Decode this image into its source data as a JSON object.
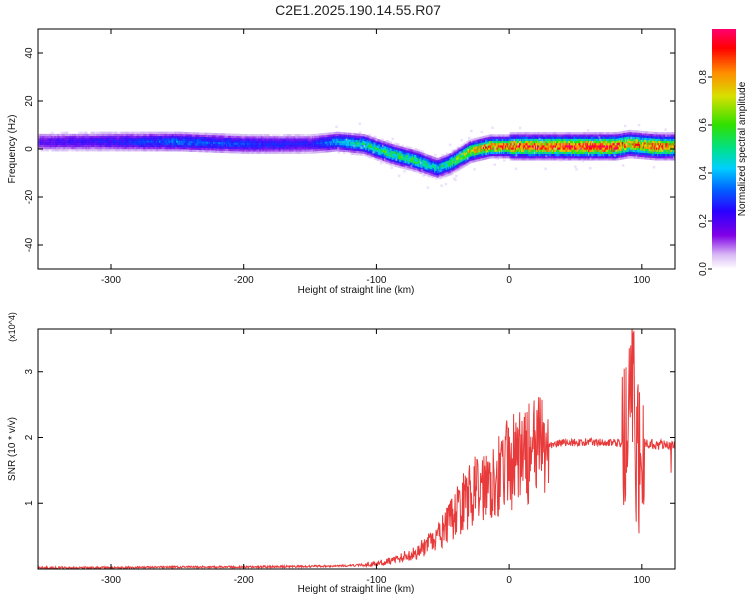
{
  "title": "C2E1.2025.190.14.55.R07",
  "chart_data": [
    {
      "type": "heatmap",
      "xlabel": "Height of straight line (km)",
      "ylabel": "Frequency (Hz)",
      "xlim": [
        -355,
        125
      ],
      "ylim": [
        -50,
        50
      ],
      "x_ticks": [
        "-300",
        "-200",
        "-100",
        "0",
        "100"
      ],
      "y_ticks": [
        "-40",
        "-20",
        "0",
        "20",
        "40"
      ],
      "colorbar": {
        "label": "Normalized spectral amplitude",
        "range": [
          0,
          1
        ],
        "ticks": [
          "0.0",
          "0.2",
          "0.4",
          "0.6",
          "0.8"
        ],
        "colors": [
          "#ffffff",
          "#c9a6f0",
          "#7a00e6",
          "#2a00ff",
          "#0040ff",
          "#00c8ff",
          "#00e08a",
          "#30e000",
          "#d8e000",
          "#ff8a00",
          "#ff0000",
          "#ff0070"
        ]
      },
      "ridge": {
        "x": [
          -355,
          -300,
          -250,
          -200,
          -150,
          -130,
          -110,
          -90,
          -70,
          -55,
          -45,
          -30,
          -15,
          0,
          30,
          60,
          80,
          90,
          110,
          125
        ],
        "frequency": [
          3,
          3,
          3,
          2,
          2,
          3,
          2,
          -2,
          -5,
          -8,
          -6,
          -1,
          1,
          1,
          1,
          1,
          1,
          2,
          1,
          1
        ],
        "amplitude": [
          0.25,
          0.3,
          0.4,
          0.35,
          0.3,
          0.45,
          0.55,
          0.6,
          0.6,
          0.5,
          0.6,
          0.75,
          0.85,
          0.9,
          0.9,
          0.95,
          0.95,
          0.8,
          0.9,
          0.85
        ]
      },
      "noise_region": [
        -355,
        -135
      ]
    },
    {
      "type": "line",
      "xlabel": "Height of straight line (km)",
      "ylabel": "SNR (10 * v/v)",
      "y_multiplier": "(x10^4)",
      "xlim": [
        -355,
        125
      ],
      "ylim": [
        0,
        3.65
      ],
      "x_ticks": [
        "-300",
        "-200",
        "-100",
        "0",
        "100"
      ],
      "y_ticks": [
        "1",
        "2",
        "3"
      ],
      "color": "#e83a3a",
      "x": [
        -355,
        -300,
        -250,
        -200,
        -150,
        -120,
        -100,
        -85,
        -70,
        -55,
        -45,
        -35,
        -25,
        -15,
        -5,
        0,
        10,
        20,
        30,
        40,
        60,
        75,
        85,
        90,
        93,
        96,
        100,
        110,
        118,
        125
      ],
      "y": [
        0.02,
        0.02,
        0.03,
        0.03,
        0.04,
        0.05,
        0.08,
        0.15,
        0.25,
        0.45,
        0.7,
        1.0,
        1.2,
        1.35,
        1.5,
        1.6,
        1.7,
        1.8,
        1.88,
        1.92,
        1.93,
        1.93,
        1.9,
        2.1,
        3.0,
        1.5,
        1.92,
        1.9,
        1.88,
        1.88
      ]
    }
  ]
}
